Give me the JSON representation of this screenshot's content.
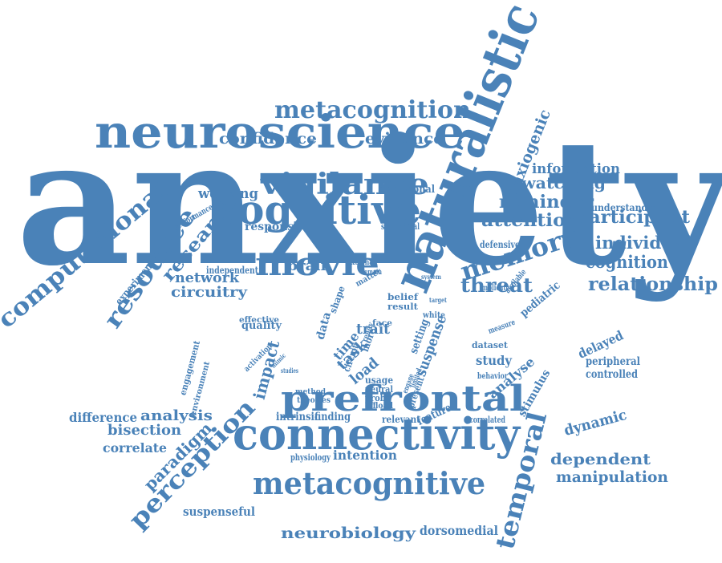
{
  "theme": {
    "word_color": "#4a82b8",
    "background": "#ffffff"
  },
  "words": [
    {
      "id": "anxiety",
      "text": "anxiety"
    },
    {
      "id": "naturalistic",
      "text": "naturalistic"
    },
    {
      "id": "neuroscience",
      "text": "neuroscience"
    },
    {
      "id": "connectivity",
      "text": "connectivity"
    },
    {
      "id": "cognitive",
      "text": "cognitive"
    },
    {
      "id": "prefrontal",
      "text": "prefrontal"
    },
    {
      "id": "metacognitive",
      "text": "metacognitive"
    },
    {
      "id": "movie",
      "text": "movie"
    },
    {
      "id": "vigilance",
      "text": "vigilance"
    },
    {
      "id": "computational",
      "text": "computational"
    },
    {
      "id": "resource",
      "text": "resource"
    },
    {
      "id": "metacognition",
      "text": "metacognition"
    },
    {
      "id": "memory",
      "text": "memory"
    },
    {
      "id": "perception",
      "text": "perception"
    },
    {
      "id": "temporal",
      "text": "temporal"
    },
    {
      "id": "research",
      "text": "research"
    },
    {
      "id": "relationship",
      "text": "relationship"
    },
    {
      "id": "threat",
      "text": "threat"
    },
    {
      "id": "attention",
      "text": "attention"
    },
    {
      "id": "participant",
      "text": "participant"
    },
    {
      "id": "reminder",
      "text": "reminder"
    },
    {
      "id": "individual",
      "text": "individual"
    },
    {
      "id": "cognition",
      "text": "cognition"
    },
    {
      "id": "watching",
      "text": "watching"
    },
    {
      "id": "information",
      "text": "information"
    },
    {
      "id": "confidence",
      "text": "confidence"
    },
    {
      "id": "evidence",
      "text": "evidence"
    },
    {
      "id": "anxiogenic",
      "text": "anxiogenic"
    },
    {
      "id": "working",
      "text": "working"
    },
    {
      "id": "paradigm",
      "text": "paradigm"
    },
    {
      "id": "dependent",
      "text": "dependent"
    },
    {
      "id": "manipulation",
      "text": "manipulation"
    },
    {
      "id": "neurobiology",
      "text": "neurobiology"
    },
    {
      "id": "dorsomedial",
      "text": "dorsomedial"
    },
    {
      "id": "suspenseful",
      "text": "suspenseful"
    },
    {
      "id": "network",
      "text": "network"
    },
    {
      "id": "circuitry",
      "text": "circuitry"
    },
    {
      "id": "brain",
      "text": "brain"
    },
    {
      "id": "analysis",
      "text": "analysis"
    },
    {
      "id": "difference",
      "text": "difference"
    },
    {
      "id": "bisection",
      "text": "bisection"
    },
    {
      "id": "correlate",
      "text": "correlate"
    },
    {
      "id": "intention",
      "text": "intention"
    },
    {
      "id": "physiology",
      "text": "physiology"
    },
    {
      "id": "intrinsic",
      "text": "intrinsic"
    },
    {
      "id": "finding",
      "text": "finding"
    },
    {
      "id": "relevant",
      "text": "relevant"
    },
    {
      "id": "feature",
      "text": "feature"
    },
    {
      "id": "correlated",
      "text": "correlated"
    },
    {
      "id": "dynamic",
      "text": "dynamic"
    },
    {
      "id": "stimulus",
      "text": "stimulus"
    },
    {
      "id": "study",
      "text": "study"
    },
    {
      "id": "behavior",
      "text": "behavior"
    },
    {
      "id": "analyse",
      "text": "analyse"
    },
    {
      "id": "delayed",
      "text": "delayed"
    },
    {
      "id": "peripheral",
      "text": "peripheral"
    },
    {
      "id": "controlled",
      "text": "controlled"
    },
    {
      "id": "dataset",
      "text": "dataset"
    },
    {
      "id": "measure",
      "text": "measure"
    },
    {
      "id": "pediatric",
      "text": "pediatric"
    },
    {
      "id": "implicated",
      "text": "implicated"
    },
    {
      "id": "available",
      "text": "available"
    },
    {
      "id": "defensive",
      "text": "defensive"
    },
    {
      "id": "understanding",
      "text": "understanding"
    },
    {
      "id": "response",
      "text": "response"
    },
    {
      "id": "subcortical",
      "text": "subcortical"
    },
    {
      "id": "attentional",
      "text": "attentional"
    },
    {
      "id": "performance",
      "text": "performance"
    },
    {
      "id": "experiment",
      "text": "experiment"
    },
    {
      "id": "independent",
      "text": "independent"
    },
    {
      "id": "impact",
      "text": "impact"
    },
    {
      "id": "time",
      "text": "time"
    },
    {
      "id": "trait",
      "text": "trait"
    },
    {
      "id": "task",
      "text": "task"
    },
    {
      "id": "load",
      "text": "load"
    },
    {
      "id": "usage",
      "text": "usage"
    },
    {
      "id": "neural",
      "text": "neural"
    },
    {
      "id": "probe",
      "text": "probe"
    },
    {
      "id": "offload",
      "text": "offload"
    },
    {
      "id": "suspense",
      "text": "suspense"
    },
    {
      "id": "setting",
      "text": "setting"
    },
    {
      "id": "present",
      "text": "present"
    },
    {
      "id": "white",
      "text": "white"
    },
    {
      "id": "belief",
      "text": "belief"
    },
    {
      "id": "result",
      "text": "result"
    },
    {
      "id": "face",
      "text": "face"
    },
    {
      "id": "more",
      "text": "more"
    },
    {
      "id": "quality",
      "text": "quality"
    },
    {
      "id": "effective",
      "text": "effective"
    },
    {
      "id": "engagement",
      "text": "engagement"
    },
    {
      "id": "environment",
      "text": "environment"
    },
    {
      "id": "activation",
      "text": "activation"
    },
    {
      "id": "mimic",
      "text": "mimic"
    },
    {
      "id": "studies",
      "text": "studies"
    },
    {
      "id": "theories",
      "text": "theories"
    },
    {
      "id": "method",
      "text": "method"
    },
    {
      "id": "data",
      "text": "data"
    },
    {
      "id": "shape",
      "text": "shape"
    },
    {
      "id": "matter",
      "text": "matter"
    },
    {
      "id": "external",
      "text": "external"
    },
    {
      "id": "remain",
      "text": "remain"
    },
    {
      "id": "system",
      "text": "system"
    },
    {
      "id": "target",
      "text": "target"
    },
    {
      "id": "circuit",
      "text": "circuit"
    },
    {
      "id": "ready",
      "text": "ready"
    },
    {
      "id": "engage",
      "text": "engage"
    },
    {
      "id": "limited",
      "text": "limited"
    }
  ]
}
